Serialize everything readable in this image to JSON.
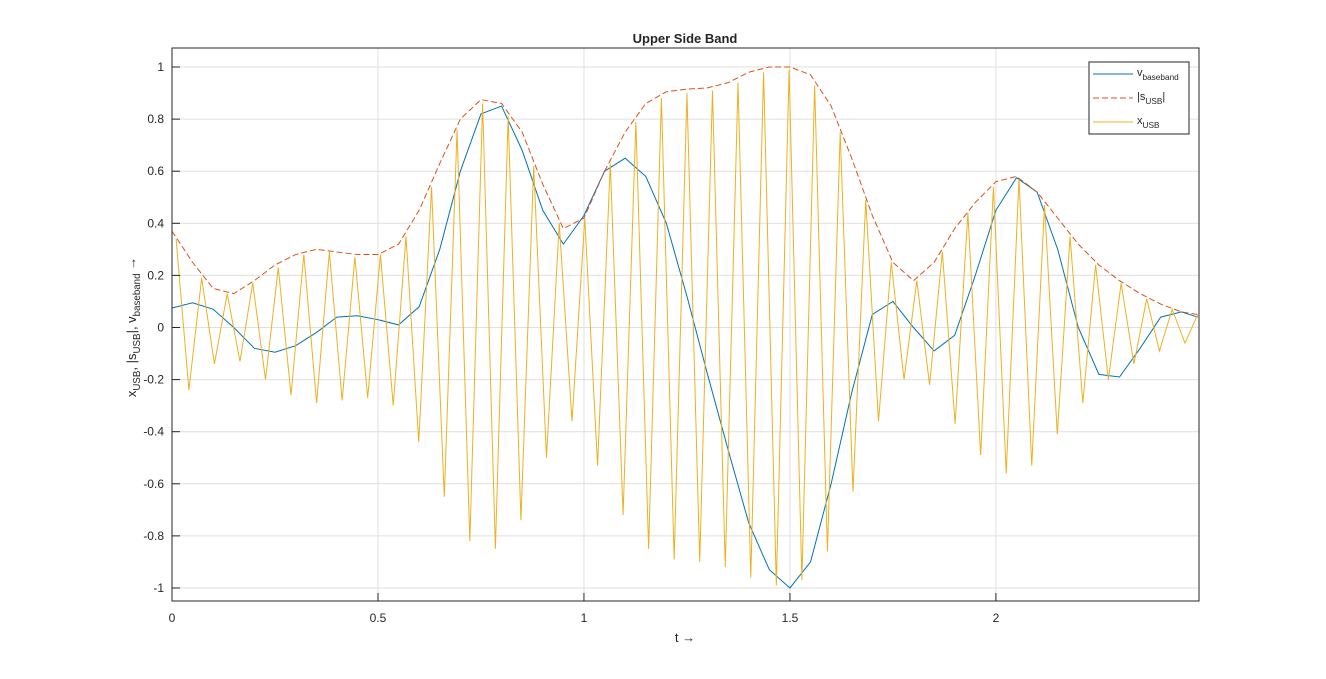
{
  "chart_data": {
    "type": "line",
    "title": "Upper Side Band",
    "xlabel": [
      {
        "text": "t →"
      }
    ],
    "ylabel": [
      {
        "text": "x"
      },
      {
        "text": "USB",
        "sub": true
      },
      {
        "text": ", |s"
      },
      {
        "text": "USB",
        "sub": true
      },
      {
        "text": "|, v"
      },
      {
        "text": "baseband",
        "sub": true
      },
      {
        "text": " →"
      }
    ],
    "xlim": [
      0,
      2.493
    ],
    "ylim": [
      -1.05,
      1.073
    ],
    "xticks": [
      0,
      0.5,
      1,
      1.5,
      2
    ],
    "yticks": [
      -1,
      -0.8,
      -0.6,
      -0.4,
      -0.2,
      0,
      0.2,
      0.4,
      0.6,
      0.8,
      1
    ],
    "grid": true,
    "legend": "top-right",
    "series": [
      {
        "name": [
          {
            "text": "v"
          },
          {
            "text": "baseband",
            "sub": true
          }
        ],
        "color": "#0072BD",
        "line_style": "solid",
        "x": [
          0,
          0.05,
          0.1,
          0.15,
          0.2,
          0.25,
          0.3,
          0.35,
          0.4,
          0.45,
          0.5,
          0.55,
          0.6,
          0.65,
          0.7,
          0.75,
          0.8,
          0.85,
          0.9,
          0.95,
          1.0,
          1.05,
          1.1,
          1.15,
          1.2,
          1.25,
          1.3,
          1.35,
          1.4,
          1.45,
          1.5,
          1.55,
          1.6,
          1.65,
          1.7,
          1.75,
          1.8,
          1.85,
          1.9,
          1.95,
          2.0,
          2.05,
          2.1,
          2.15,
          2.2,
          2.25,
          2.3,
          2.35,
          2.4,
          2.45,
          2.49
        ],
        "values": [
          0.075,
          0.095,
          0.07,
          0.0,
          -0.08,
          -0.095,
          -0.07,
          -0.02,
          0.04,
          0.045,
          0.03,
          0.01,
          0.08,
          0.3,
          0.6,
          0.82,
          0.85,
          0.68,
          0.45,
          0.32,
          0.43,
          0.6,
          0.65,
          0.58,
          0.4,
          0.12,
          -0.18,
          -0.47,
          -0.75,
          -0.93,
          -1.0,
          -0.9,
          -0.6,
          -0.25,
          0.05,
          0.1,
          0.0,
          -0.09,
          -0.03,
          0.2,
          0.45,
          0.575,
          0.52,
          0.3,
          0.0,
          -0.18,
          -0.19,
          -0.08,
          0.04,
          0.06,
          0.04
        ]
      },
      {
        "name": [
          {
            "text": "|s"
          },
          {
            "text": "USB",
            "sub": true
          },
          {
            "text": "|"
          }
        ],
        "color": "#D95319",
        "line_style": "dashed",
        "x": [
          0,
          0.05,
          0.1,
          0.15,
          0.2,
          0.25,
          0.3,
          0.35,
          0.4,
          0.45,
          0.5,
          0.55,
          0.6,
          0.65,
          0.7,
          0.75,
          0.8,
          0.85,
          0.9,
          0.95,
          1.0,
          1.05,
          1.1,
          1.15,
          1.2,
          1.25,
          1.3,
          1.35,
          1.4,
          1.45,
          1.5,
          1.55,
          1.6,
          1.65,
          1.7,
          1.75,
          1.8,
          1.85,
          1.9,
          1.95,
          2.0,
          2.05,
          2.1,
          2.15,
          2.2,
          2.25,
          2.3,
          2.35,
          2.4,
          2.45,
          2.49
        ],
        "values": [
          0.37,
          0.25,
          0.15,
          0.13,
          0.18,
          0.24,
          0.28,
          0.3,
          0.29,
          0.28,
          0.28,
          0.32,
          0.45,
          0.63,
          0.8,
          0.875,
          0.86,
          0.75,
          0.55,
          0.38,
          0.42,
          0.6,
          0.75,
          0.86,
          0.905,
          0.915,
          0.92,
          0.94,
          0.98,
          1.0,
          1.0,
          0.97,
          0.85,
          0.65,
          0.43,
          0.25,
          0.18,
          0.25,
          0.38,
          0.48,
          0.56,
          0.58,
          0.52,
          0.42,
          0.32,
          0.24,
          0.18,
          0.13,
          0.09,
          0.06,
          0.05
        ]
      },
      {
        "name": [
          {
            "text": "x"
          },
          {
            "text": "USB",
            "sub": true
          }
        ],
        "color": "#EDB120",
        "line_style": "solid",
        "x": [
          0.01,
          0.041,
          0.072,
          0.103,
          0.134,
          0.165,
          0.196,
          0.227,
          0.258,
          0.289,
          0.32,
          0.351,
          0.382,
          0.413,
          0.444,
          0.475,
          0.506,
          0.537,
          0.568,
          0.599,
          0.63,
          0.661,
          0.692,
          0.723,
          0.754,
          0.785,
          0.816,
          0.847,
          0.878,
          0.909,
          0.94,
          0.971,
          1.002,
          1.033,
          1.064,
          1.095,
          1.126,
          1.157,
          1.188,
          1.219,
          1.25,
          1.281,
          1.312,
          1.343,
          1.374,
          1.405,
          1.436,
          1.467,
          1.498,
          1.529,
          1.56,
          1.591,
          1.622,
          1.653,
          1.684,
          1.715,
          1.746,
          1.777,
          1.808,
          1.839,
          1.87,
          1.901,
          1.932,
          1.963,
          1.994,
          2.025,
          2.056,
          2.087,
          2.118,
          2.149,
          2.18,
          2.211,
          2.242,
          2.273,
          2.304,
          2.335,
          2.366,
          2.397,
          2.428,
          2.459,
          2.49
        ],
        "values": [
          0.34,
          -0.24,
          0.19,
          -0.14,
          0.13,
          -0.13,
          0.17,
          -0.2,
          0.23,
          -0.26,
          0.28,
          -0.29,
          0.29,
          -0.28,
          0.27,
          -0.27,
          0.28,
          -0.3,
          0.35,
          -0.44,
          0.54,
          -0.65,
          0.76,
          -0.82,
          0.86,
          -0.85,
          0.81,
          -0.74,
          0.62,
          -0.5,
          0.4,
          -0.36,
          0.42,
          -0.53,
          0.63,
          -0.72,
          0.79,
          -0.85,
          0.88,
          -0.89,
          0.9,
          -0.9,
          0.91,
          -0.92,
          0.94,
          -0.96,
          0.98,
          -0.99,
          0.99,
          -0.97,
          0.93,
          -0.86,
          0.75,
          -0.63,
          0.49,
          -0.36,
          0.25,
          -0.2,
          0.18,
          -0.22,
          0.29,
          -0.37,
          0.44,
          -0.49,
          0.54,
          -0.56,
          0.57,
          -0.53,
          0.47,
          -0.41,
          0.35,
          -0.29,
          0.24,
          -0.2,
          0.17,
          -0.14,
          0.11,
          -0.09,
          0.07,
          -0.06,
          0.05
        ]
      }
    ]
  }
}
